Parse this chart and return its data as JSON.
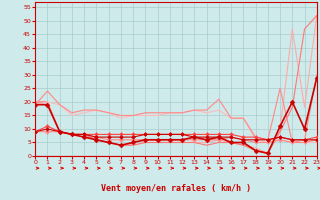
{
  "xlabel": "Vent moyen/en rafales ( km/h )",
  "bg_color": "#ceeaea",
  "grid_color": "#aacccc",
  "xmin": 0,
  "xmax": 23,
  "ymin": 0,
  "ymax": 57,
  "yticks": [
    0,
    5,
    10,
    15,
    20,
    25,
    30,
    35,
    40,
    45,
    50,
    55
  ],
  "xticks": [
    0,
    1,
    2,
    3,
    4,
    5,
    6,
    7,
    8,
    9,
    10,
    11,
    12,
    13,
    14,
    15,
    16,
    17,
    18,
    19,
    20,
    21,
    22,
    23
  ],
  "lines": [
    {
      "x": [
        0,
        1,
        2,
        3,
        4,
        5,
        6,
        7,
        8,
        9,
        10,
        11,
        12,
        13,
        14,
        15,
        16,
        17,
        18,
        19,
        20,
        21,
        22,
        23
      ],
      "y": [
        20,
        20,
        9,
        8,
        8,
        6,
        5,
        4,
        4,
        5,
        5,
        5,
        5,
        5,
        5,
        6,
        5,
        4,
        3,
        1,
        10,
        47,
        18,
        52
      ],
      "color": "#ffaaaa",
      "lw": 0.8,
      "marker": null,
      "zorder": 2
    },
    {
      "x": [
        0,
        1,
        2,
        3,
        4,
        5,
        6,
        7,
        8,
        9,
        10,
        11,
        12,
        13,
        14,
        15,
        16,
        17,
        18,
        19,
        20,
        21,
        22,
        23
      ],
      "y": [
        20,
        20,
        9,
        8,
        8,
        6,
        5,
        4,
        4,
        5,
        5,
        5,
        5,
        5,
        4,
        5,
        5,
        4,
        2,
        1,
        9,
        18,
        47,
        52
      ],
      "color": "#ff7777",
      "lw": 0.8,
      "marker": null,
      "zorder": 2
    },
    {
      "x": [
        0,
        1,
        2,
        3,
        4,
        5,
        6,
        7,
        8,
        9,
        10,
        11,
        12,
        13,
        14,
        15,
        16,
        17,
        18,
        19,
        20,
        21,
        22,
        23
      ],
      "y": [
        19,
        20,
        19,
        15,
        16,
        17,
        16,
        14,
        15,
        15,
        15,
        16,
        16,
        17,
        16,
        17,
        14,
        14,
        6,
        5,
        6,
        5,
        5,
        5
      ],
      "color": "#ffbbbb",
      "lw": 0.8,
      "marker": null,
      "zorder": 2
    },
    {
      "x": [
        0,
        1,
        2,
        3,
        4,
        5,
        6,
        7,
        8,
        9,
        10,
        11,
        12,
        13,
        14,
        15,
        16,
        17,
        18,
        19,
        20,
        21,
        22,
        23
      ],
      "y": [
        19,
        24,
        19,
        16,
        17,
        17,
        16,
        15,
        15,
        16,
        16,
        16,
        16,
        17,
        17,
        21,
        14,
        14,
        7,
        6,
        25,
        5,
        6,
        30
      ],
      "color": "#ff8888",
      "lw": 0.8,
      "marker": null,
      "zorder": 2
    },
    {
      "x": [
        0,
        1,
        2,
        3,
        4,
        5,
        6,
        7,
        8,
        9,
        10,
        11,
        12,
        13,
        14,
        15,
        16,
        17,
        18,
        19,
        20,
        21,
        22,
        23
      ],
      "y": [
        9,
        9,
        9,
        8,
        8,
        7,
        6,
        6,
        6,
        6,
        6,
        6,
        6,
        6,
        6,
        6,
        7,
        6,
        5,
        5,
        6,
        5,
        5,
        6
      ],
      "color": "#ff8888",
      "lw": 0.8,
      "marker": "D",
      "markersize": 2,
      "zorder": 3
    },
    {
      "x": [
        0,
        1,
        2,
        3,
        4,
        5,
        6,
        7,
        8,
        9,
        10,
        11,
        12,
        13,
        14,
        15,
        16,
        17,
        18,
        19,
        20,
        21,
        22,
        23
      ],
      "y": [
        9,
        11,
        9,
        8,
        8,
        8,
        8,
        8,
        8,
        8,
        8,
        8,
        8,
        8,
        8,
        8,
        8,
        7,
        7,
        6,
        7,
        6,
        6,
        7
      ],
      "color": "#ff4444",
      "lw": 0.8,
      "marker": "D",
      "markersize": 2,
      "zorder": 3
    },
    {
      "x": [
        0,
        1,
        2,
        3,
        4,
        5,
        6,
        7,
        8,
        9,
        10,
        11,
        12,
        13,
        14,
        15,
        16,
        17,
        18,
        19,
        20,
        21,
        22,
        23
      ],
      "y": [
        9,
        10,
        9,
        8,
        8,
        7,
        7,
        7,
        7,
        8,
        8,
        8,
        8,
        7,
        7,
        7,
        7,
        6,
        6,
        6,
        7,
        6,
        6,
        6
      ],
      "color": "#cc0000",
      "lw": 0.8,
      "marker": "D",
      "markersize": 2,
      "zorder": 3
    },
    {
      "x": [
        0,
        1,
        2,
        3,
        4,
        5,
        6,
        7,
        8,
        9,
        10,
        11,
        12,
        13,
        14,
        15,
        16,
        17,
        18,
        19,
        20,
        21,
        22,
        23
      ],
      "y": [
        19,
        19,
        9,
        8,
        7,
        6,
        5,
        4,
        5,
        6,
        6,
        6,
        6,
        7,
        6,
        7,
        5,
        5,
        2,
        1,
        11,
        20,
        10,
        29
      ],
      "color": "#cc0000",
      "lw": 1.2,
      "marker": "D",
      "markersize": 2.5,
      "zorder": 4
    }
  ],
  "arrow_color": "#dd0000",
  "tick_color": "#cc0000",
  "label_color": "#cc0000"
}
